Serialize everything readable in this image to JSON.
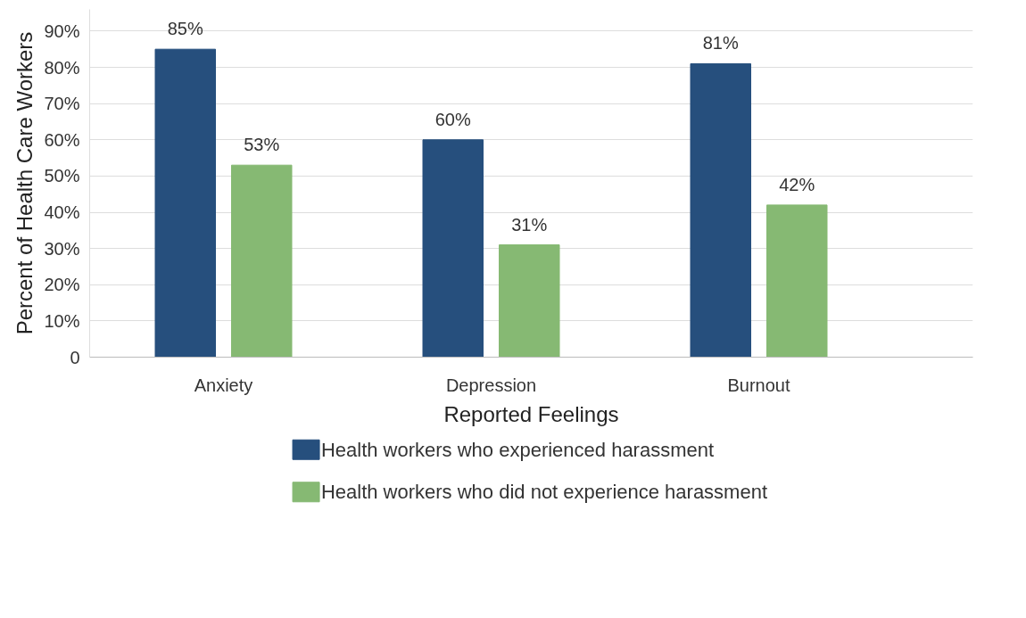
{
  "chart_data": {
    "type": "bar",
    "xlabel": "Reported Feelings",
    "ylabel": "Percent of Health Care Workers",
    "categories": [
      "Anxiety",
      "Depression",
      "Burnout"
    ],
    "series": [
      {
        "name": "Health workers who experienced harassment",
        "color": "#264f7d",
        "values": [
          85,
          60,
          81
        ],
        "value_labels": [
          "85%",
          "60%",
          "81%"
        ]
      },
      {
        "name": "Health workers who did not experience harassment",
        "color": "#86b973",
        "values": [
          53,
          31,
          42
        ],
        "value_labels": [
          "53%",
          "31%",
          "42%"
        ]
      }
    ],
    "ylim": [
      0,
      96
    ],
    "yticks": [
      0,
      {
        "value": 10,
        "label": "10%"
      },
      {
        "value": 20,
        "label": "20%"
      },
      {
        "value": 30,
        "label": "30%"
      },
      {
        "value": 40,
        "label": "40%"
      },
      {
        "value": 50,
        "label": "50%"
      },
      {
        "value": 60,
        "label": "60%"
      },
      {
        "value": 70,
        "label": "70%"
      },
      {
        "value": 80,
        "label": "80%"
      },
      {
        "value": 90,
        "label": "90%"
      }
    ],
    "grid": "y",
    "legend": "bottom"
  }
}
